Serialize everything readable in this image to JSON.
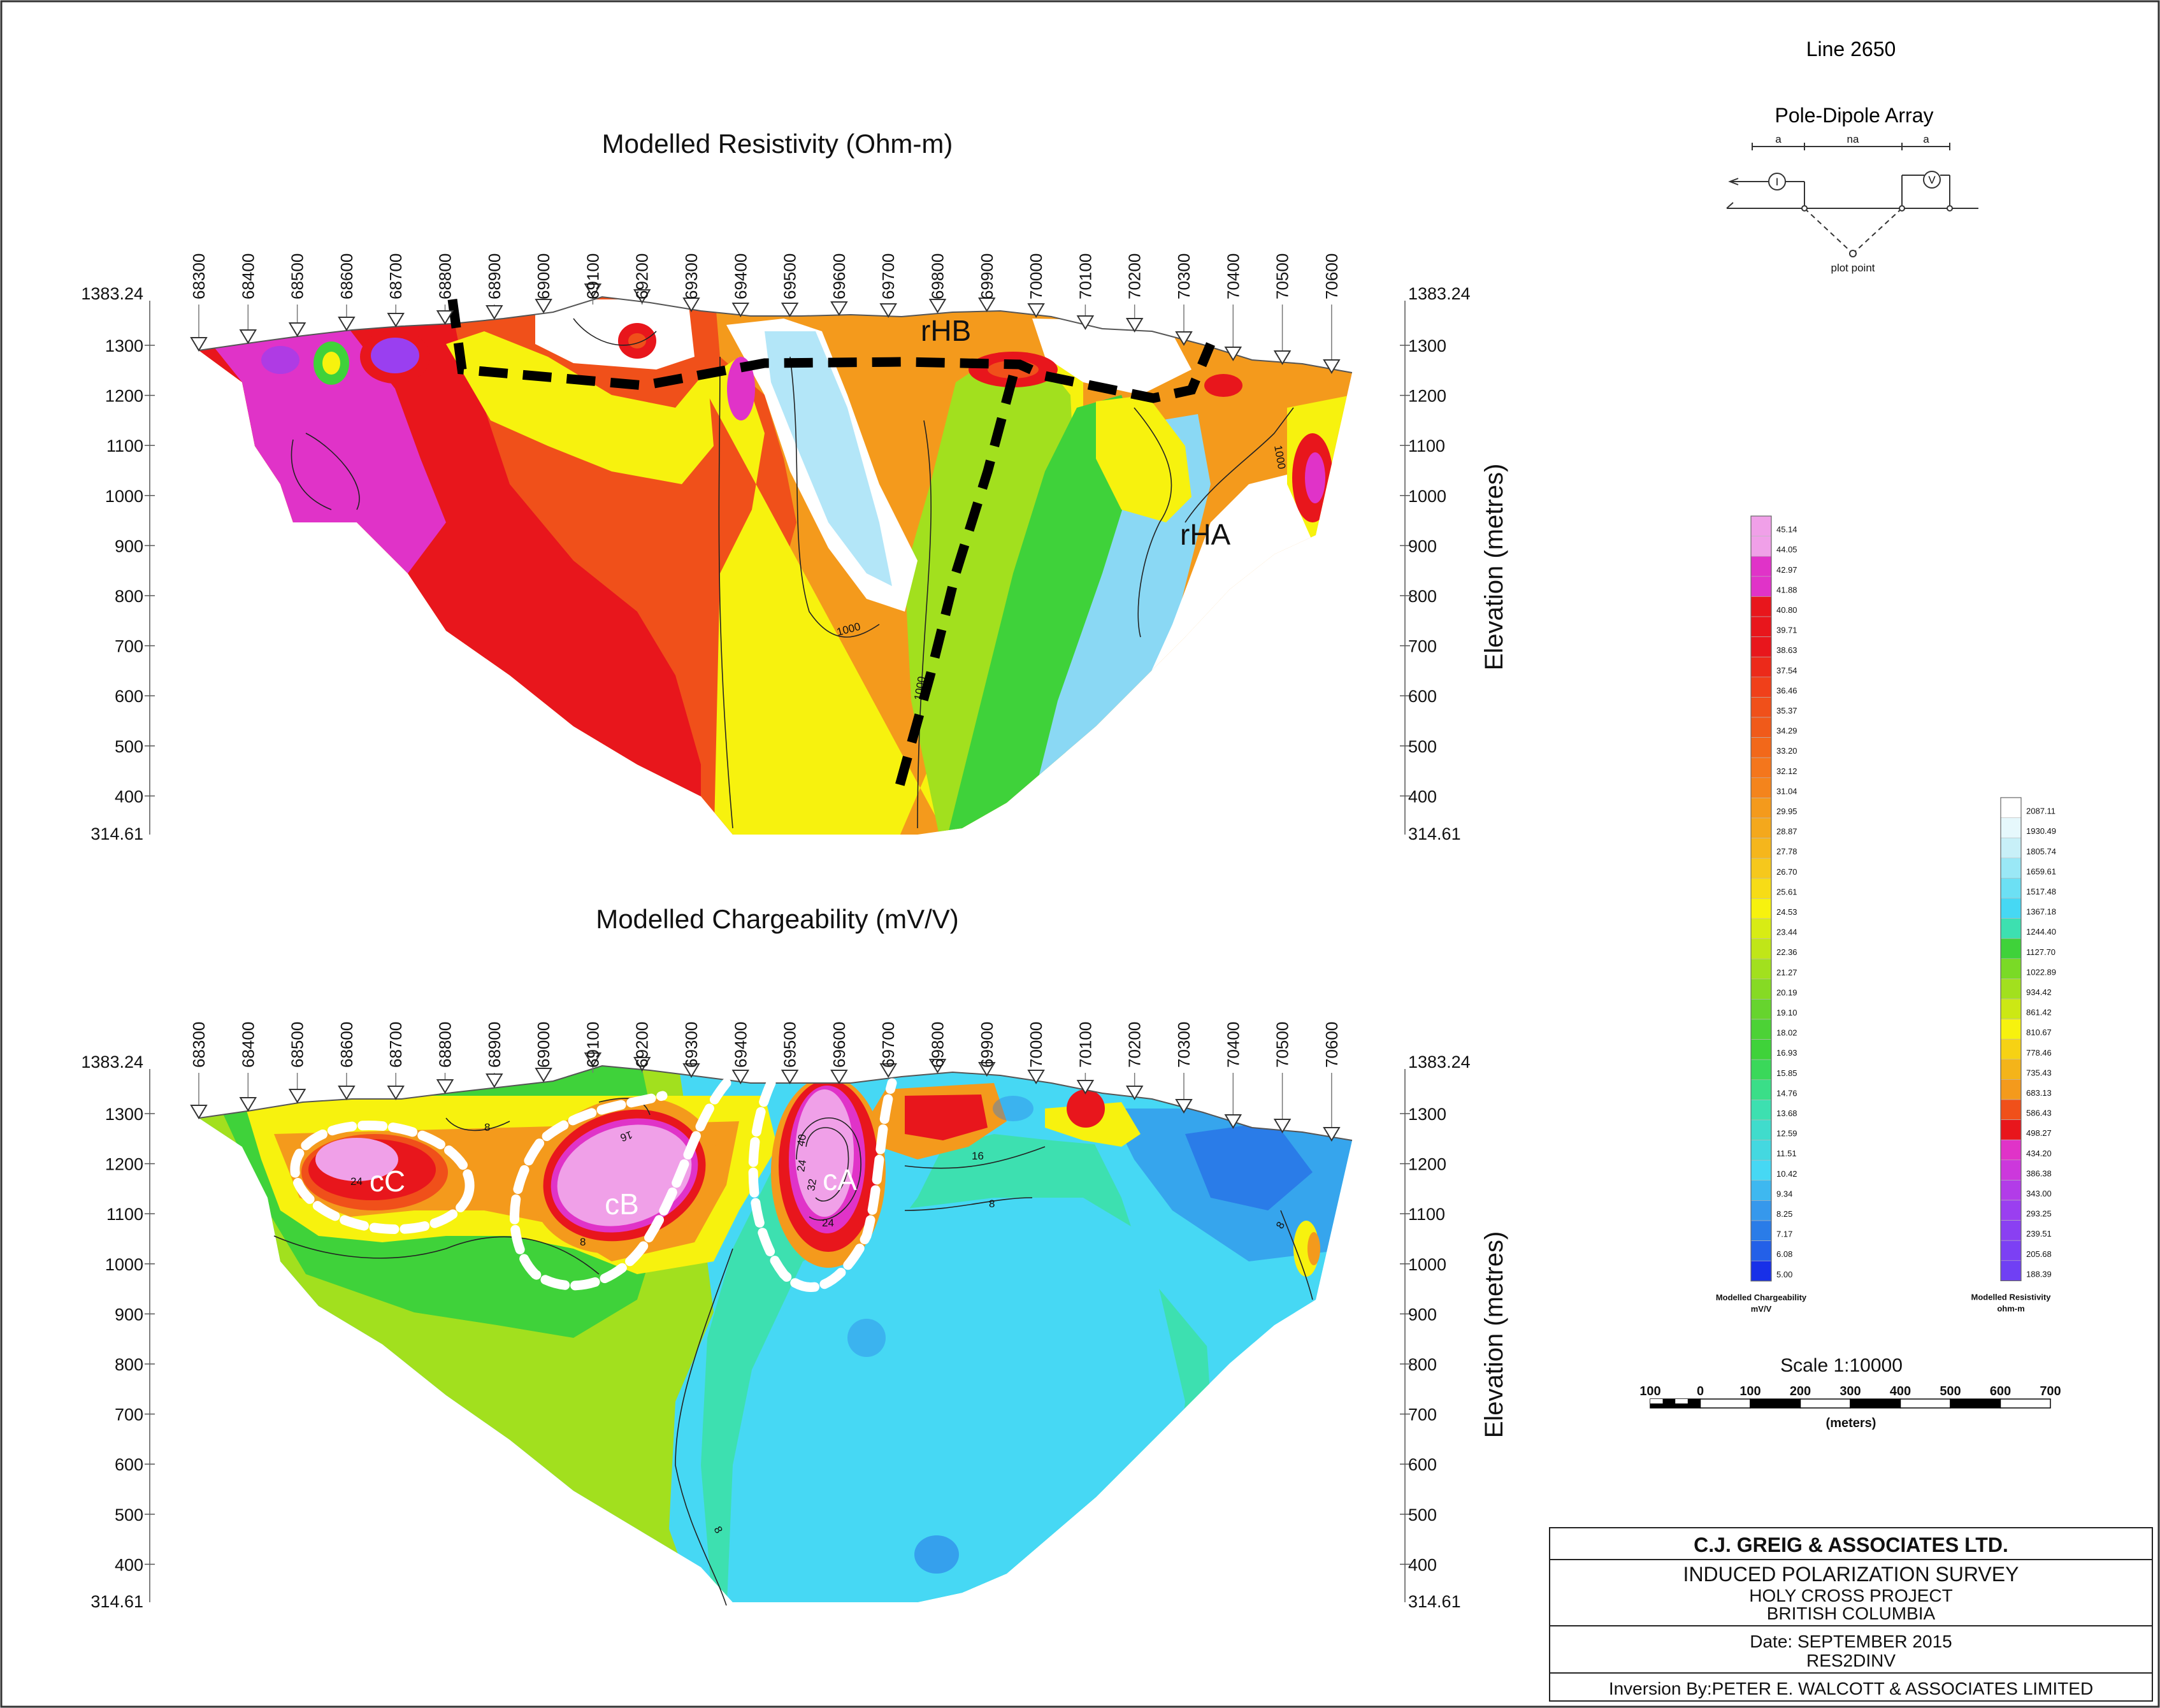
{
  "header": {
    "line_label": "Line 2650",
    "array_title": "Pole-Dipole Array",
    "array_labels": [
      "a",
      "na",
      "a"
    ],
    "array_symbols": [
      "I",
      "V"
    ],
    "plot_point_label": "plot point"
  },
  "stations": [
    "68300",
    "68400",
    "68500",
    "68600",
    "68700",
    "68800",
    "68900",
    "69000",
    "69100",
    "69200",
    "69300",
    "69400",
    "69500",
    "69600",
    "69700",
    "69800",
    "69900",
    "70000",
    "70100",
    "70200",
    "70300",
    "70400",
    "70500",
    "70600"
  ],
  "elevation_axis": {
    "top_label": "1383.24",
    "bottom_label": "314.61",
    "ticks": [
      "1300",
      "1200",
      "1100",
      "1000",
      "900",
      "800",
      "700",
      "600",
      "500",
      "400"
    ],
    "side_title": "Elevation (metres)"
  },
  "colors": {
    "magenta": "#e033c8",
    "violet": "#9a3ff0",
    "red": "#e8161c",
    "red_orange": "#f0501a",
    "orange": "#f49a1c",
    "yellow": "#f7f20e",
    "lime": "#a2e01e",
    "green": "#3fd23a",
    "teal": "#3de0b0",
    "cyan": "#46d8f4",
    "light_blue": "#8ad8f4",
    "blue": "#2a7ce8",
    "pink": "#f0a0e8",
    "white": "#ffffff"
  },
  "chart_data": [
    {
      "type": "heatmap",
      "title": "Modelled Resistivity (Ohm-m)",
      "xlabel": "",
      "ylabel": "Elevation (metres)",
      "x_categories": [
        "68300",
        "68400",
        "68500",
        "68600",
        "68700",
        "68800",
        "68900",
        "69000",
        "69100",
        "69200",
        "69300",
        "69400",
        "69500",
        "69600",
        "69700",
        "69800",
        "69900",
        "70000",
        "70100",
        "70200",
        "70300",
        "70400",
        "70500",
        "70600"
      ],
      "ylim": [
        314.61,
        1383.24
      ],
      "anomaly_labels": [
        "rHB",
        "rHA"
      ],
      "contour_labels": [
        "1000",
        "1000",
        "1000"
      ],
      "legend": {
        "caption": "Modelled Resistivity",
        "unit": "ohm-m",
        "values": [
          "2087.11",
          "1930.49",
          "1805.74",
          "1659.61",
          "1517.48",
          "1367.18",
          "1244.40",
          "1127.70",
          "1022.89",
          "934.42",
          "861.42",
          "810.67",
          "778.46",
          "735.43",
          "683.13",
          "586.43",
          "498.27",
          "434.20",
          "386.38",
          "343.00",
          "293.25",
          "239.51",
          "205.68",
          "188.39"
        ]
      }
    },
    {
      "type": "heatmap",
      "title": "Modelled Chargeability (mV/V)",
      "xlabel": "",
      "ylabel": "Elevation (metres)",
      "x_categories": [
        "68300",
        "68400",
        "68500",
        "68600",
        "68700",
        "68800",
        "68900",
        "69000",
        "69100",
        "69200",
        "69300",
        "69400",
        "69500",
        "69600",
        "69700",
        "69800",
        "69900",
        "70000",
        "70100",
        "70200",
        "70300",
        "70400",
        "70500",
        "70600"
      ],
      "ylim": [
        314.61,
        1383.24
      ],
      "anomaly_labels": [
        "cC",
        "cB",
        "cA"
      ],
      "contour_labels": [
        "8",
        "16",
        "24",
        "8",
        "8",
        "8",
        "24",
        "32",
        "40",
        "24",
        "16",
        "8"
      ],
      "legend": {
        "caption": "Modelled Chargeability",
        "unit": "mV/V",
        "values": [
          "45.14",
          "44.05",
          "42.97",
          "41.88",
          "40.80",
          "39.71",
          "38.63",
          "37.54",
          "36.46",
          "35.37",
          "34.29",
          "33.20",
          "32.12",
          "31.04",
          "29.95",
          "28.87",
          "27.78",
          "26.70",
          "25.61",
          "24.53",
          "23.44",
          "22.36",
          "21.27",
          "20.19",
          "19.10",
          "18.02",
          "16.93",
          "15.85",
          "14.76",
          "13.68",
          "12.59",
          "11.51",
          "10.42",
          "9.34",
          "8.25",
          "7.17",
          "6.08",
          "5.00"
        ]
      }
    }
  ],
  "scale_bar": {
    "title": "Scale 1:10000",
    "labels": [
      "100",
      "0",
      "100",
      "200",
      "300",
      "400",
      "500",
      "600",
      "700"
    ],
    "unit": "(meters)"
  },
  "title_block": {
    "company": "C.J. GREIG & ASSOCIATES LTD.",
    "survey": "INDUCED POLARIZATION SURVEY",
    "project": "HOLY CROSS PROJECT",
    "location": "BRITISH COLUMBIA",
    "date": "Date: SEPTEMBER 2015",
    "software": "RES2DINV",
    "inversion": "Inversion By:PETER E. WALCOTT & ASSOCIATES LIMITED"
  }
}
